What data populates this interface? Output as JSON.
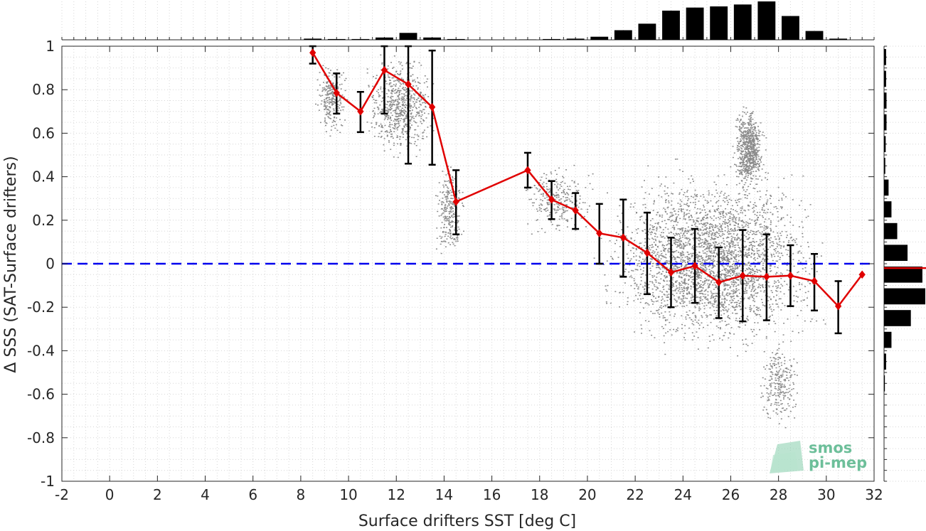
{
  "chart_data": {
    "type": "scatter",
    "title": "",
    "xlabel": "Surface drifters SST [deg C]",
    "ylabel": "Δ SSS (SAT-Surface drifters)",
    "xlim": [
      -2,
      32
    ],
    "ylim": [
      -1,
      1
    ],
    "x_ticks": [
      -2,
      0,
      2,
      4,
      6,
      8,
      10,
      12,
      14,
      16,
      18,
      20,
      22,
      24,
      26,
      28,
      30,
      32
    ],
    "y_ticks": [
      -1,
      -0.8,
      -0.6,
      -0.4,
      -0.2,
      0,
      0.2,
      0.4,
      0.6,
      0.8,
      1
    ],
    "grid": true,
    "reference_line": {
      "y": 0,
      "style": "dashed",
      "color": "#0000ee"
    },
    "binned_mean": {
      "color": "#e00000",
      "x": [
        8.5,
        9.5,
        10.5,
        11.5,
        12.5,
        13.5,
        14.5,
        17.5,
        18.5,
        19.5,
        20.5,
        21.5,
        22.5,
        23.5,
        24.5,
        25.5,
        26.5,
        27.5,
        28.5,
        29.5,
        30.5,
        31.5
      ],
      "y": [
        0.97,
        0.785,
        0.7,
        0.89,
        0.825,
        0.72,
        0.285,
        0.43,
        0.295,
        0.245,
        0.14,
        0.12,
        0.05,
        -0.04,
        -0.01,
        -0.085,
        -0.055,
        -0.06,
        -0.055,
        -0.08,
        -0.195,
        -0.05
      ],
      "error_low": [
        0.92,
        0.69,
        0.605,
        0.69,
        0.46,
        0.455,
        0.135,
        0.35,
        0.205,
        0.16,
        0.0,
        -0.06,
        -0.14,
        -0.2,
        -0.18,
        -0.25,
        -0.265,
        -0.26,
        -0.195,
        -0.215,
        -0.32,
        null
      ],
      "error_high": [
        1.0,
        0.875,
        0.79,
        1.0,
        1.0,
        0.98,
        0.43,
        0.51,
        0.38,
        0.325,
        0.275,
        0.295,
        0.235,
        0.12,
        0.16,
        0.075,
        0.155,
        0.135,
        0.085,
        0.045,
        -0.08,
        null
      ]
    },
    "scatter_clusters": [
      {
        "x": [
          8.5,
          10.0
        ],
        "y": [
          0.58,
          0.95
        ],
        "density": "low"
      },
      {
        "x": [
          10.5,
          13.8
        ],
        "y": [
          0.45,
          1.0
        ],
        "density": "medium"
      },
      {
        "x": [
          13.5,
          14.9
        ],
        "y": [
          0.0,
          0.5
        ],
        "density": "low"
      },
      {
        "x": [
          17.0,
          20.5
        ],
        "y": [
          0.1,
          0.48
        ],
        "density": "low"
      },
      {
        "x": [
          20.0,
          30.5
        ],
        "y": [
          -0.45,
          0.5
        ],
        "density": "high"
      },
      {
        "x": [
          26.0,
          27.5
        ],
        "y": [
          0.3,
          0.75
        ],
        "density": "medium"
      },
      {
        "x": [
          27.0,
          29.0
        ],
        "y": [
          -0.8,
          -0.3
        ],
        "density": "low"
      }
    ],
    "top_histogram": {
      "bins": [
        8.5,
        9.5,
        10.5,
        11.5,
        12.5,
        13.5,
        14.5,
        17.5,
        18.5,
        19.5,
        20.5,
        21.5,
        22.5,
        23.5,
        24.5,
        25.5,
        26.5,
        27.5,
        28.5,
        29.5,
        30.5
      ],
      "counts": [
        0.03,
        0.02,
        0.02,
        0.06,
        0.18,
        0.06,
        0.02,
        0.01,
        0.02,
        0.03,
        0.08,
        0.25,
        0.42,
        0.76,
        0.84,
        0.87,
        0.92,
        1.0,
        0.62,
        0.23,
        0.03
      ]
    },
    "right_histogram": {
      "bins": [
        0.95,
        0.85,
        0.75,
        0.65,
        0.55,
        0.45,
        0.35,
        0.25,
        0.15,
        0.05,
        -0.05,
        -0.15,
        -0.25,
        -0.35,
        -0.45,
        -0.55
      ],
      "counts": [
        0.05,
        0.05,
        0.06,
        0.06,
        0.04,
        0.03,
        0.11,
        0.18,
        0.32,
        0.57,
        0.93,
        1.0,
        0.65,
        0.18,
        0.05,
        0.02
      ],
      "mean": -0.02,
      "mean_color": "#e00000"
    }
  },
  "logo": {
    "line1": "smos",
    "line2": "pi-mep"
  }
}
